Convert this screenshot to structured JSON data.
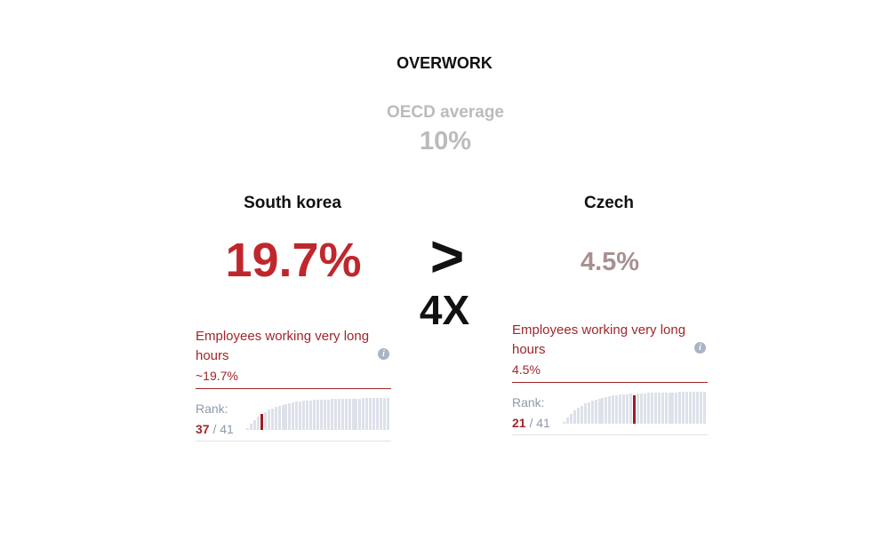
{
  "title": "OVERWORK",
  "average": {
    "label": "OECD average",
    "value": "10%"
  },
  "comparison": {
    "symbol": ">",
    "factor": "4X"
  },
  "countries": [
    {
      "name": "South korea",
      "value": "19.7%",
      "card": {
        "heading": "Employees working very long hours",
        "value": "~19.7%",
        "rank_label": "Rank:",
        "rank": 37,
        "separator": "/",
        "total": 41
      }
    },
    {
      "name": "Czech",
      "value": "4.5%",
      "card": {
        "heading": "Employees working very long hours",
        "value": "4.5%",
        "rank_label": "Rank:",
        "rank": 21,
        "separator": "/",
        "total": 41
      }
    }
  ]
}
